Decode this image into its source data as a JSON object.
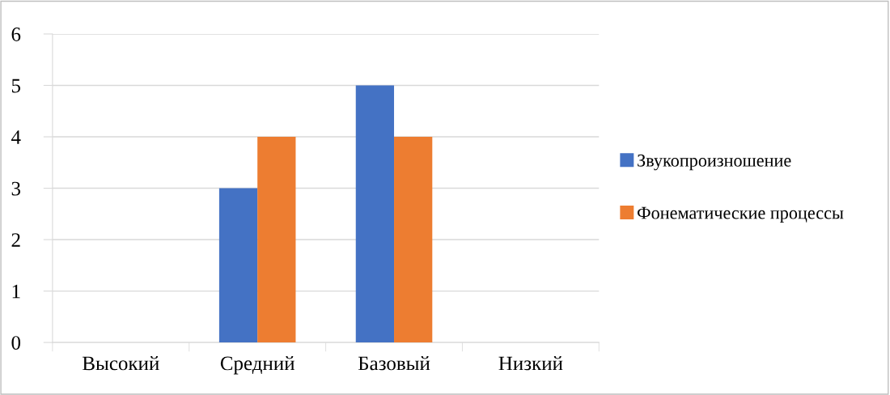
{
  "chart_data": {
    "type": "bar",
    "categories": [
      "Высокий",
      "Средний",
      "Базовый",
      "Низкий"
    ],
    "series": [
      {
        "name": "Звукопроизношение",
        "color": "#4472c4",
        "values": [
          0,
          3,
          5,
          0
        ]
      },
      {
        "name": "Фонематические процессы",
        "color": "#ed7d31",
        "values": [
          0,
          4,
          4,
          0
        ]
      }
    ],
    "ylim": [
      0,
      6
    ],
    "yticks": [
      0,
      1,
      2,
      3,
      4,
      5,
      6
    ],
    "grid": "y",
    "legend": "right"
  }
}
